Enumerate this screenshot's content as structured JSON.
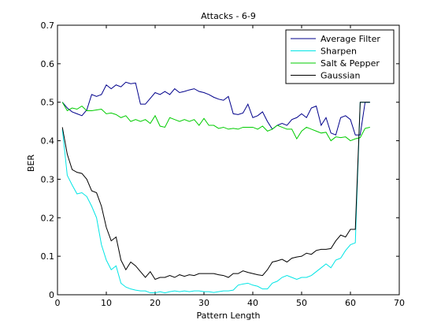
{
  "chart_data": {
    "type": "line",
    "title": "Attacks - 6-9",
    "xlabel": "Pattern Length",
    "ylabel": "BER",
    "xlim": [
      0,
      70
    ],
    "ylim": [
      0,
      0.7
    ],
    "xticks": [
      0,
      10,
      20,
      30,
      40,
      50,
      60,
      70
    ],
    "yticks": [
      0,
      0.1,
      0.2,
      0.3,
      0.4,
      0.5,
      0.6,
      0.7
    ],
    "xtick_labels": [
      "0",
      "10",
      "20",
      "30",
      "40",
      "50",
      "60",
      "70"
    ],
    "ytick_labels": [
      "0",
      "0.1",
      "0.2",
      "0.3",
      "0.4",
      "0.5",
      "0.6",
      "0.7"
    ],
    "grid": false,
    "legend_position": "top-right",
    "x": [
      1,
      2,
      3,
      4,
      5,
      6,
      7,
      8,
      9,
      10,
      11,
      12,
      13,
      14,
      15,
      16,
      17,
      18,
      19,
      20,
      21,
      22,
      23,
      24,
      25,
      26,
      27,
      28,
      29,
      30,
      31,
      32,
      33,
      34,
      35,
      36,
      37,
      38,
      39,
      40,
      41,
      42,
      43,
      44,
      45,
      46,
      47,
      48,
      49,
      50,
      51,
      52,
      53,
      54,
      55,
      56,
      57,
      58,
      59,
      60,
      61,
      62,
      63,
      64
    ],
    "series": [
      {
        "name": "Average Filter",
        "color": "#00008b",
        "values": [
          0.5,
          0.485,
          0.475,
          0.47,
          0.465,
          0.48,
          0.52,
          0.515,
          0.52,
          0.545,
          0.535,
          0.545,
          0.54,
          0.552,
          0.548,
          0.55,
          0.495,
          0.495,
          0.51,
          0.525,
          0.52,
          0.528,
          0.52,
          0.535,
          0.525,
          0.528,
          0.532,
          0.535,
          0.528,
          0.525,
          0.52,
          0.513,
          0.508,
          0.505,
          0.515,
          0.47,
          0.468,
          0.472,
          0.495,
          0.46,
          0.465,
          0.475,
          0.45,
          0.43,
          0.44,
          0.445,
          0.44,
          0.455,
          0.46,
          0.47,
          0.46,
          0.485,
          0.49,
          0.44,
          0.46,
          0.42,
          0.415,
          0.46,
          0.465,
          0.455,
          0.415,
          0.415,
          0.5,
          0.5
        ]
      },
      {
        "name": "Sharpen",
        "color": "#00e5e5",
        "values": [
          0.43,
          0.31,
          0.285,
          0.262,
          0.265,
          0.255,
          0.23,
          0.2,
          0.13,
          0.09,
          0.065,
          0.075,
          0.03,
          0.02,
          0.015,
          0.012,
          0.01,
          0.01,
          0.005,
          0.005,
          0.008,
          0.005,
          0.008,
          0.01,
          0.008,
          0.01,
          0.008,
          0.01,
          0.01,
          0.008,
          0.008,
          0.006,
          0.008,
          0.01,
          0.01,
          0.012,
          0.025,
          0.028,
          0.03,
          0.025,
          0.022,
          0.015,
          0.015,
          0.03,
          0.035,
          0.045,
          0.05,
          0.045,
          0.04,
          0.045,
          0.045,
          0.05,
          0.06,
          0.07,
          0.08,
          0.07,
          0.09,
          0.095,
          0.115,
          0.13,
          0.135,
          0.5,
          0.5,
          0.5
        ]
      },
      {
        "name": "Salt & Pepper",
        "color": "#00cc00",
        "values": [
          0.5,
          0.478,
          0.485,
          0.482,
          0.49,
          0.478,
          0.478,
          0.48,
          0.482,
          0.47,
          0.472,
          0.468,
          0.46,
          0.465,
          0.45,
          0.455,
          0.45,
          0.455,
          0.445,
          0.465,
          0.438,
          0.435,
          0.46,
          0.455,
          0.45,
          0.455,
          0.45,
          0.455,
          0.44,
          0.458,
          0.44,
          0.44,
          0.432,
          0.435,
          0.43,
          0.432,
          0.43,
          0.435,
          0.435,
          0.435,
          0.43,
          0.438,
          0.425,
          0.43,
          0.44,
          0.435,
          0.43,
          0.43,
          0.405,
          0.425,
          0.435,
          0.43,
          0.425,
          0.42,
          0.422,
          0.4,
          0.41,
          0.408,
          0.41,
          0.4,
          0.405,
          0.408,
          0.432,
          0.435
        ]
      },
      {
        "name": "Gaussian",
        "color": "#000000",
        "values": [
          0.435,
          0.365,
          0.325,
          0.318,
          0.315,
          0.3,
          0.27,
          0.265,
          0.23,
          0.175,
          0.14,
          0.15,
          0.09,
          0.065,
          0.085,
          0.075,
          0.06,
          0.045,
          0.06,
          0.04,
          0.045,
          0.045,
          0.05,
          0.045,
          0.052,
          0.048,
          0.052,
          0.05,
          0.055,
          0.055,
          0.055,
          0.055,
          0.052,
          0.05,
          0.045,
          0.055,
          0.055,
          0.062,
          0.058,
          0.055,
          0.052,
          0.05,
          0.065,
          0.085,
          0.088,
          0.092,
          0.085,
          0.095,
          0.098,
          0.1,
          0.108,
          0.105,
          0.115,
          0.118,
          0.118,
          0.12,
          0.14,
          0.155,
          0.15,
          0.17,
          0.17,
          0.5,
          0.5,
          0.5
        ]
      }
    ]
  }
}
